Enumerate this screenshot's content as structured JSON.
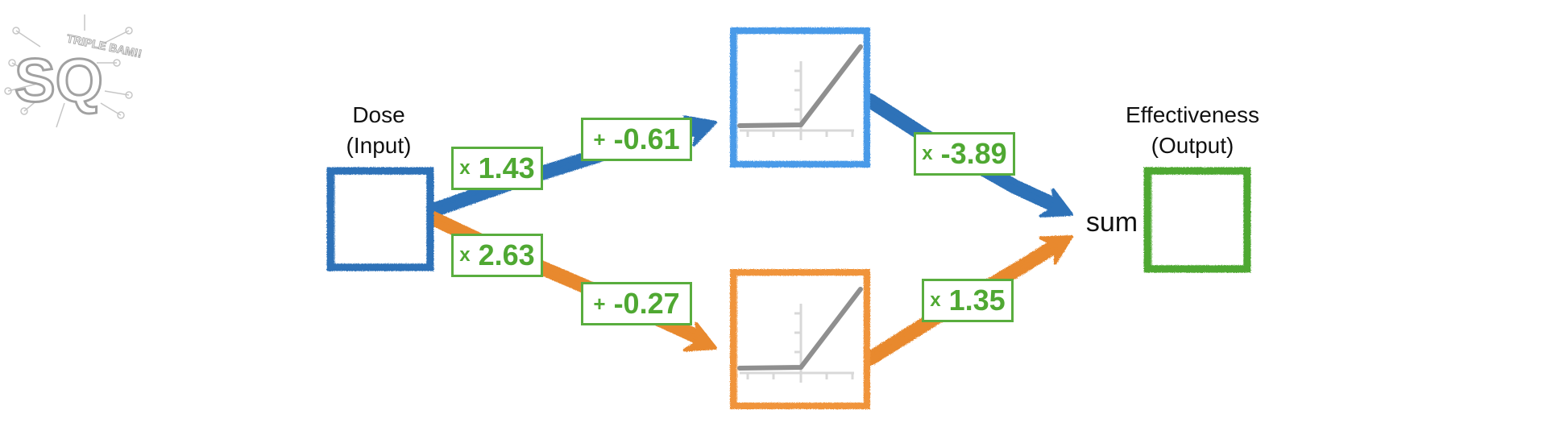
{
  "logo": {
    "letters": "SQ",
    "tagline": "TRIPLE BAM!!"
  },
  "input": {
    "title": "Dose",
    "subtitle": "(Input)",
    "color": "#2e72b8"
  },
  "output": {
    "title": "Effectiveness",
    "subtitle": "(Output)",
    "color": "#4fa832"
  },
  "sum_label": "sum",
  "top_path": {
    "color": "#2e72b8",
    "node_color": "#4a9ae8",
    "weight_op": "x",
    "weight": "1.43",
    "bias_op": "+",
    "bias": "-0.61",
    "out_op": "x",
    "out_weight": "-3.89"
  },
  "bottom_path": {
    "color": "#e8892e",
    "node_color": "#f0943a",
    "weight_op": "x",
    "weight": "2.63",
    "bias_op": "+",
    "bias": "-0.27",
    "out_op": "x",
    "out_weight": "1.35"
  },
  "activation": "relu",
  "label_color": "#4fa832"
}
